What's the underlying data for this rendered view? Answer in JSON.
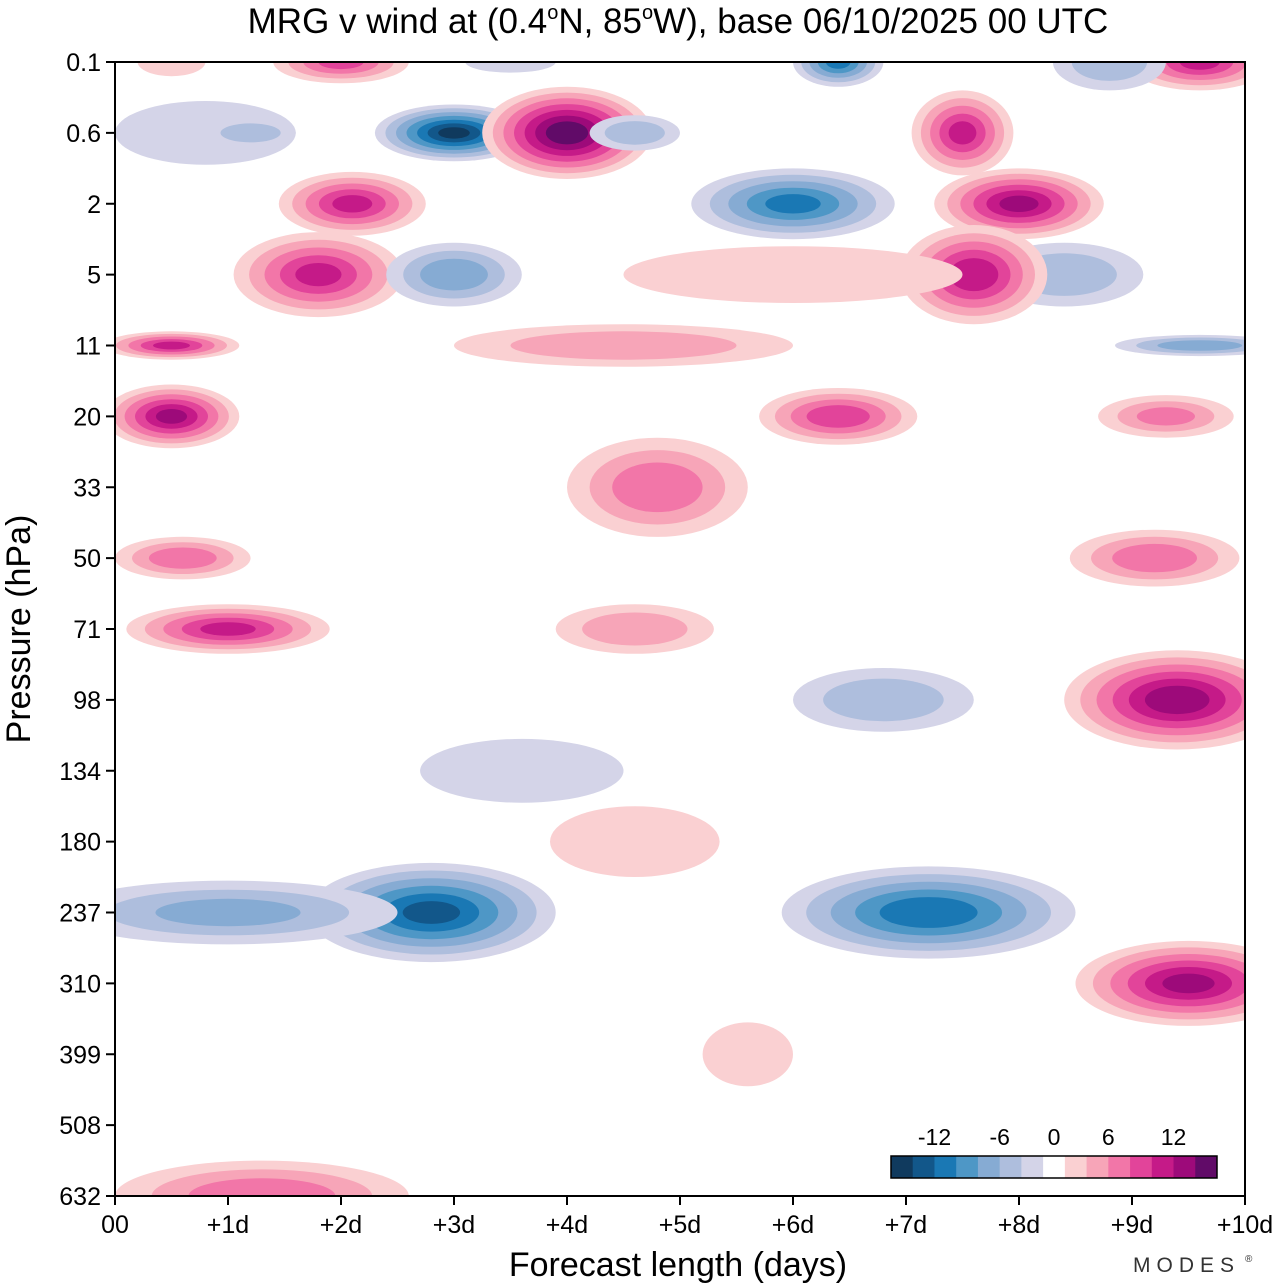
{
  "title": {
    "prefix": "MRG v wind at (0.4",
    "deg1": "o",
    "mid": "N, 85",
    "deg2": "o",
    "suffix": "W),  base 06/10/2025  00 UTC"
  },
  "brand": {
    "text": "MODES",
    "mark": "®"
  },
  "chart_data": {
    "type": "heatmap",
    "xlabel": "Forecast length (days)",
    "ylabel": "Pressure (hPa)",
    "x_unit": "days",
    "xlim": [
      0,
      10
    ],
    "y_tick_labels": [
      "0.1",
      "0.6",
      "2",
      "5",
      "11",
      "20",
      "33",
      "50",
      "71",
      "98",
      "134",
      "180",
      "237",
      "310",
      "399",
      "508",
      "632"
    ],
    "x_tick_labels": [
      "00",
      "+1d",
      "+2d",
      "+3d",
      "+4d",
      "+5d",
      "+6d",
      "+7d",
      "+8d",
      "+9d",
      "+10d"
    ],
    "colorbar": {
      "ticks": [
        "-12",
        "-6",
        "0",
        "6",
        "12"
      ],
      "levels": [
        -16,
        -14,
        -12,
        -10,
        -8,
        -6,
        -4,
        -2,
        2,
        4,
        6,
        8,
        10,
        12,
        14,
        16
      ],
      "colors": [
        "#103a5e",
        "#12578a",
        "#1a78b4",
        "#4e97c6",
        "#86abd3",
        "#aebedd",
        "#d4d4e8",
        "#ffffff",
        "#fad0d2",
        "#f7a5b8",
        "#f276a8",
        "#e2449a",
        "#c51a88",
        "#9d0a7a",
        "#610b68"
      ]
    },
    "value_unit": "m/s",
    "cells": [
      {
        "day": 0.5,
        "level": "0.1",
        "value": 3,
        "w": 0.6,
        "h": 0.4
      },
      {
        "day": 2.0,
        "level": "0.1",
        "value": 8,
        "w": 1.2,
        "h": 0.6
      },
      {
        "day": 0.8,
        "level": "0.6",
        "value": -3,
        "w": 1.6,
        "h": 0.9
      },
      {
        "day": 1.2,
        "level": "0.6",
        "value": -5,
        "w": 0.8,
        "h": 0.4
      },
      {
        "day": 3.0,
        "level": "0.6",
        "value": -14,
        "w": 1.4,
        "h": 0.8
      },
      {
        "day": 3.5,
        "level": "0.1",
        "value": -3,
        "w": 0.8,
        "h": 0.3
      },
      {
        "day": 4.0,
        "level": "0.6",
        "value": 15,
        "w": 1.5,
        "h": 1.3
      },
      {
        "day": 4.6,
        "level": "0.6",
        "value": -5,
        "w": 0.8,
        "h": 0.5
      },
      {
        "day": 6.0,
        "level": "2",
        "value": -10,
        "w": 1.8,
        "h": 1.0
      },
      {
        "day": 6.4,
        "level": "0.1",
        "value": -10,
        "w": 0.8,
        "h": 0.7
      },
      {
        "day": 7.5,
        "level": "0.6",
        "value": 10,
        "w": 0.9,
        "h": 1.2
      },
      {
        "day": 8.0,
        "level": "2",
        "value": 12,
        "w": 1.5,
        "h": 1.0
      },
      {
        "day": 9.6,
        "level": "0.1",
        "value": 10,
        "w": 1.3,
        "h": 0.8
      },
      {
        "day": 8.8,
        "level": "0.1",
        "value": -5,
        "w": 1.0,
        "h": 0.8
      },
      {
        "day": 2.1,
        "level": "2",
        "value": 10,
        "w": 1.3,
        "h": 0.9
      },
      {
        "day": 1.8,
        "level": "5",
        "value": 10,
        "w": 1.5,
        "h": 1.2
      },
      {
        "day": 3.0,
        "level": "5",
        "value": -7,
        "w": 1.2,
        "h": 0.9
      },
      {
        "day": 8.4,
        "level": "5",
        "value": -5,
        "w": 1.4,
        "h": 0.9
      },
      {
        "day": 7.6,
        "level": "5",
        "value": 11,
        "w": 1.3,
        "h": 1.4
      },
      {
        "day": 6.0,
        "level": "5",
        "value": 3,
        "w": 3.0,
        "h": 0.8
      },
      {
        "day": 0.5,
        "level": "11",
        "value": 10,
        "w": 1.2,
        "h": 0.4
      },
      {
        "day": 4.5,
        "level": "11",
        "value": 5,
        "w": 3.0,
        "h": 0.6
      },
      {
        "day": 9.6,
        "level": "11",
        "value": -7,
        "w": 1.5,
        "h": 0.3
      },
      {
        "day": 0.5,
        "level": "20",
        "value": 12,
        "w": 1.2,
        "h": 0.9
      },
      {
        "day": 6.4,
        "level": "20",
        "value": 9,
        "w": 1.4,
        "h": 0.8
      },
      {
        "day": 9.3,
        "level": "20",
        "value": 6,
        "w": 1.2,
        "h": 0.6
      },
      {
        "day": 4.8,
        "level": "33",
        "value": 7,
        "w": 1.6,
        "h": 1.4
      },
      {
        "day": 0.6,
        "level": "50",
        "value": 7,
        "w": 1.2,
        "h": 0.6
      },
      {
        "day": 9.2,
        "level": "50",
        "value": 7,
        "w": 1.5,
        "h": 0.8
      },
      {
        "day": 1.0,
        "level": "71",
        "value": 10,
        "w": 1.8,
        "h": 0.7
      },
      {
        "day": 4.6,
        "level": "71",
        "value": 5,
        "w": 1.4,
        "h": 0.7
      },
      {
        "day": 6.8,
        "level": "98",
        "value": -5,
        "w": 1.6,
        "h": 0.9
      },
      {
        "day": 9.4,
        "level": "98",
        "value": 13,
        "w": 2.0,
        "h": 1.4
      },
      {
        "day": 3.6,
        "level": "134",
        "value": -3,
        "w": 1.8,
        "h": 0.9
      },
      {
        "day": 4.6,
        "level": "180",
        "value": 3,
        "w": 1.5,
        "h": 1.0
      },
      {
        "day": 2.8,
        "level": "237",
        "value": -12,
        "w": 2.2,
        "h": 1.4
      },
      {
        "day": 1.0,
        "level": "237",
        "value": -6,
        "w": 3.0,
        "h": 0.9
      },
      {
        "day": 7.2,
        "level": "237",
        "value": -11,
        "w": 2.6,
        "h": 1.3
      },
      {
        "day": 9.5,
        "level": "310",
        "value": 12,
        "w": 2.0,
        "h": 1.2
      },
      {
        "day": 5.6,
        "level": "399",
        "value": 3,
        "w": 0.8,
        "h": 0.9
      },
      {
        "day": 1.3,
        "level": "632",
        "value": 7,
        "w": 2.6,
        "h": 1.0
      }
    ]
  }
}
